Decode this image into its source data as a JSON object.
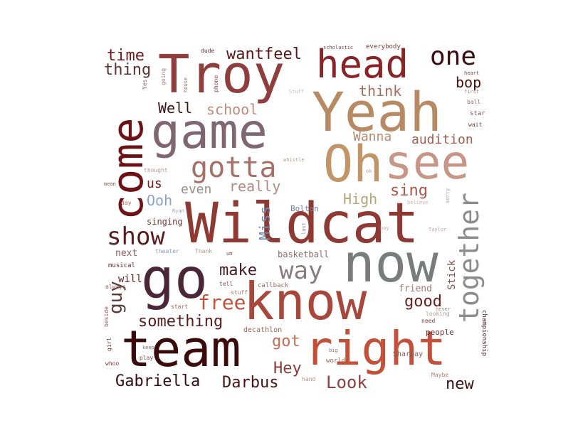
{
  "colors": {
    "background": "#ffffff"
  },
  "words": [
    {
      "text": "Wildcat",
      "color": "#8e3a33"
    },
    {
      "text": "team",
      "color": "#3b0b0b"
    },
    {
      "text": "know",
      "color": "#a8473c"
    },
    {
      "text": "Troy",
      "color": "#8f3d3d"
    },
    {
      "text": "game",
      "color": "#806672"
    },
    {
      "text": "Yeah",
      "color": "#b88a63"
    },
    {
      "text": "go",
      "color": "#4a2636"
    },
    {
      "text": "now",
      "color": "#7a7b7b"
    },
    {
      "text": "right",
      "color": "#c5503a"
    },
    {
      "text": "come",
      "color": "#6d1116"
    },
    {
      "text": "Oh",
      "color": "#c19568"
    },
    {
      "text": "see",
      "color": "#c89686"
    },
    {
      "text": "head",
      "color": "#8a2325"
    },
    {
      "text": "gotta",
      "color": "#a67066"
    },
    {
      "text": "one",
      "color": "#3a0e10"
    },
    {
      "text": "together",
      "color": "#8c8c8c"
    },
    {
      "text": "show",
      "color": "#5b1c1e"
    },
    {
      "text": "way",
      "color": "#8a7c7b"
    },
    {
      "text": "Gabriella",
      "color": "#3b0c0c"
    },
    {
      "text": "something",
      "color": "#5b1a1a"
    },
    {
      "text": "free",
      "color": "#c4513b"
    },
    {
      "text": "guy",
      "color": "#5b3a3a"
    },
    {
      "text": "Look",
      "color": "#8d3f3f"
    },
    {
      "text": "Darbus",
      "color": "#4a1212"
    },
    {
      "text": "Hey",
      "color": "#8b3a3a"
    },
    {
      "text": "good",
      "color": "#6b1d1d"
    },
    {
      "text": "new",
      "color": "#3b1010"
    },
    {
      "text": "got",
      "color": "#cc6a52"
    },
    {
      "text": "make",
      "color": "#4a1a1a"
    },
    {
      "text": "wantfeel",
      "color": "#5a1515"
    },
    {
      "text": "time",
      "color": "#7a1818"
    },
    {
      "text": "thing",
      "color": "#5e3030"
    },
    {
      "text": "think",
      "color": "#a76a60"
    },
    {
      "text": "bop",
      "color": "#4a1010"
    },
    {
      "text": "Well",
      "color": "#3b1010"
    },
    {
      "text": "school",
      "color": "#c28a7a"
    },
    {
      "text": "Wanna",
      "color": "#b88a70"
    },
    {
      "text": "audition",
      "color": "#a35a4a"
    },
    {
      "text": "really",
      "color": "#b08a80"
    },
    {
      "text": "even",
      "color": "#9b8a86"
    },
    {
      "text": "us",
      "color": "#7a1a1a"
    },
    {
      "text": "Ooh",
      "color": "#8ea2c8"
    },
    {
      "text": "High",
      "color": "#b4a67a"
    },
    {
      "text": "sing",
      "color": "#b05545"
    },
    {
      "text": "Miss",
      "color": "#6d8bb0"
    },
    {
      "text": "basketball",
      "color": "#8c6b6b"
    },
    {
      "text": "Stick",
      "color": "#8a4d4d"
    },
    {
      "text": "friend",
      "color": "#a07a75"
    },
    {
      "text": "singing",
      "color": "#7a3535"
    },
    {
      "text": "next",
      "color": "#8a5a5a"
    },
    {
      "text": "will",
      "color": "#6a2020"
    },
    {
      "text": "Bolton",
      "color": "#6a7fa8"
    },
    {
      "text": "championship",
      "color": "#4a2020"
    },
    {
      "text": "people",
      "color": "#6b3535"
    },
    {
      "text": "Sharpay",
      "color": "#8a5a50"
    },
    {
      "text": "decathlon",
      "color": "#a86050"
    },
    {
      "text": "callback",
      "color": "#9a6a60"
    },
    {
      "text": "musical",
      "color": "#7a2a2a"
    },
    {
      "text": "theater",
      "color": "#8a9ac0"
    },
    {
      "text": "Thank",
      "color": "#b09a90"
    },
    {
      "text": "world",
      "color": "#a06a60"
    },
    {
      "text": "hand",
      "color": "#c09080"
    },
    {
      "text": "Maybe",
      "color": "#b08070"
    },
    {
      "text": "play",
      "color": "#8a4a4a"
    },
    {
      "text": "girl",
      "color": "#7a3030"
    },
    {
      "text": "whoo",
      "color": "#8a3a3a"
    },
    {
      "text": "beside",
      "color": "#9a5a50"
    },
    {
      "text": "always",
      "color": "#9a6a6a"
    },
    {
      "text": "start",
      "color": "#b06050"
    },
    {
      "text": "stuff",
      "color": "#a07a70"
    },
    {
      "text": "tell",
      "color": "#8a4a4a"
    },
    {
      "text": "looking",
      "color": "#b09a95"
    },
    {
      "text": "need",
      "color": "#7a3a3a"
    },
    {
      "text": "never",
      "color": "#a08a85"
    },
    {
      "text": "everybody",
      "color": "#8a3a3a"
    },
    {
      "text": "scholastic",
      "color": "#8a3a3a"
    },
    {
      "text": "dude",
      "color": "#6a3030"
    },
    {
      "text": "phone",
      "color": "#8a4040"
    },
    {
      "text": "house",
      "color": "#9a6a60"
    },
    {
      "text": "going",
      "color": "#a08080"
    },
    {
      "text": "Yes",
      "color": "#8a6060"
    },
    {
      "text": "thought",
      "color": "#b09a90"
    },
    {
      "text": "whistle",
      "color": "#b0a090"
    },
    {
      "text": "believe",
      "color": "#d0b0a8"
    },
    {
      "text": "star",
      "color": "#8a5a5a"
    },
    {
      "text": "wait",
      "color": "#7a4040"
    },
    {
      "text": "ball",
      "color": "#9a6a65"
    },
    {
      "text": "first",
      "color": "#b08a80"
    },
    {
      "text": "heart",
      "color": "#7a3a3a"
    },
    {
      "text": "day",
      "color": "#c06a5a"
    },
    {
      "text": "last",
      "color": "#a08a85"
    },
    {
      "text": "Ryan",
      "color": "#9aa6c0"
    },
    {
      "text": "Taylor",
      "color": "#c0a098"
    },
    {
      "text": "Stuff",
      "color": "#d0b8b0"
    },
    {
      "text": "keep",
      "color": "#8a6a6a"
    },
    {
      "text": "big",
      "color": "#b07060"
    },
    {
      "text": "boy",
      "color": "#d0a8a0"
    },
    {
      "text": "sorry",
      "color": "#b09890"
    },
    {
      "text": "mean",
      "color": "#8a5050"
    },
    {
      "text": "ok",
      "color": "#d0a090"
    },
    {
      "text": "um",
      "color": "#7a3a3a"
    }
  ]
}
